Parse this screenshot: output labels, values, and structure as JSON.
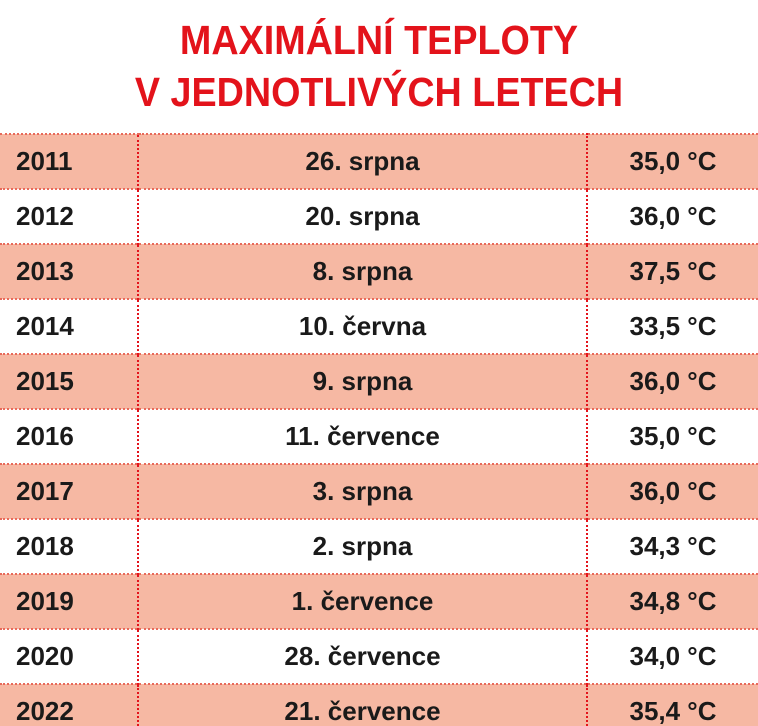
{
  "header": {
    "title": [
      "MAXIMÁLNÍ TEPLOTY",
      "V JEDNOTLIVÝCH LETECH"
    ]
  },
  "table": {
    "rows": [
      [
        "2011",
        "26. srpna",
        "35,0 °C"
      ],
      [
        "2012",
        "20. srpna",
        "36,0 °C"
      ],
      [
        "2013",
        "8. srpna",
        "37,5 °C"
      ],
      [
        "2014",
        "10. června",
        "33,5 °C"
      ],
      [
        "2015",
        "9. srpna",
        "36,0 °C"
      ],
      [
        "2016",
        "11. července",
        "35,0 °C"
      ],
      [
        "2017",
        "3. srpna",
        "36,0 °C"
      ],
      [
        "2018",
        "2. srpna",
        "34,3 °C"
      ],
      [
        "2019",
        "1. července",
        "34,8 °C"
      ],
      [
        "2020",
        "28. července",
        "34,0 °C"
      ],
      [
        "2022",
        "21. července",
        "35,4 °C"
      ]
    ]
  }
}
